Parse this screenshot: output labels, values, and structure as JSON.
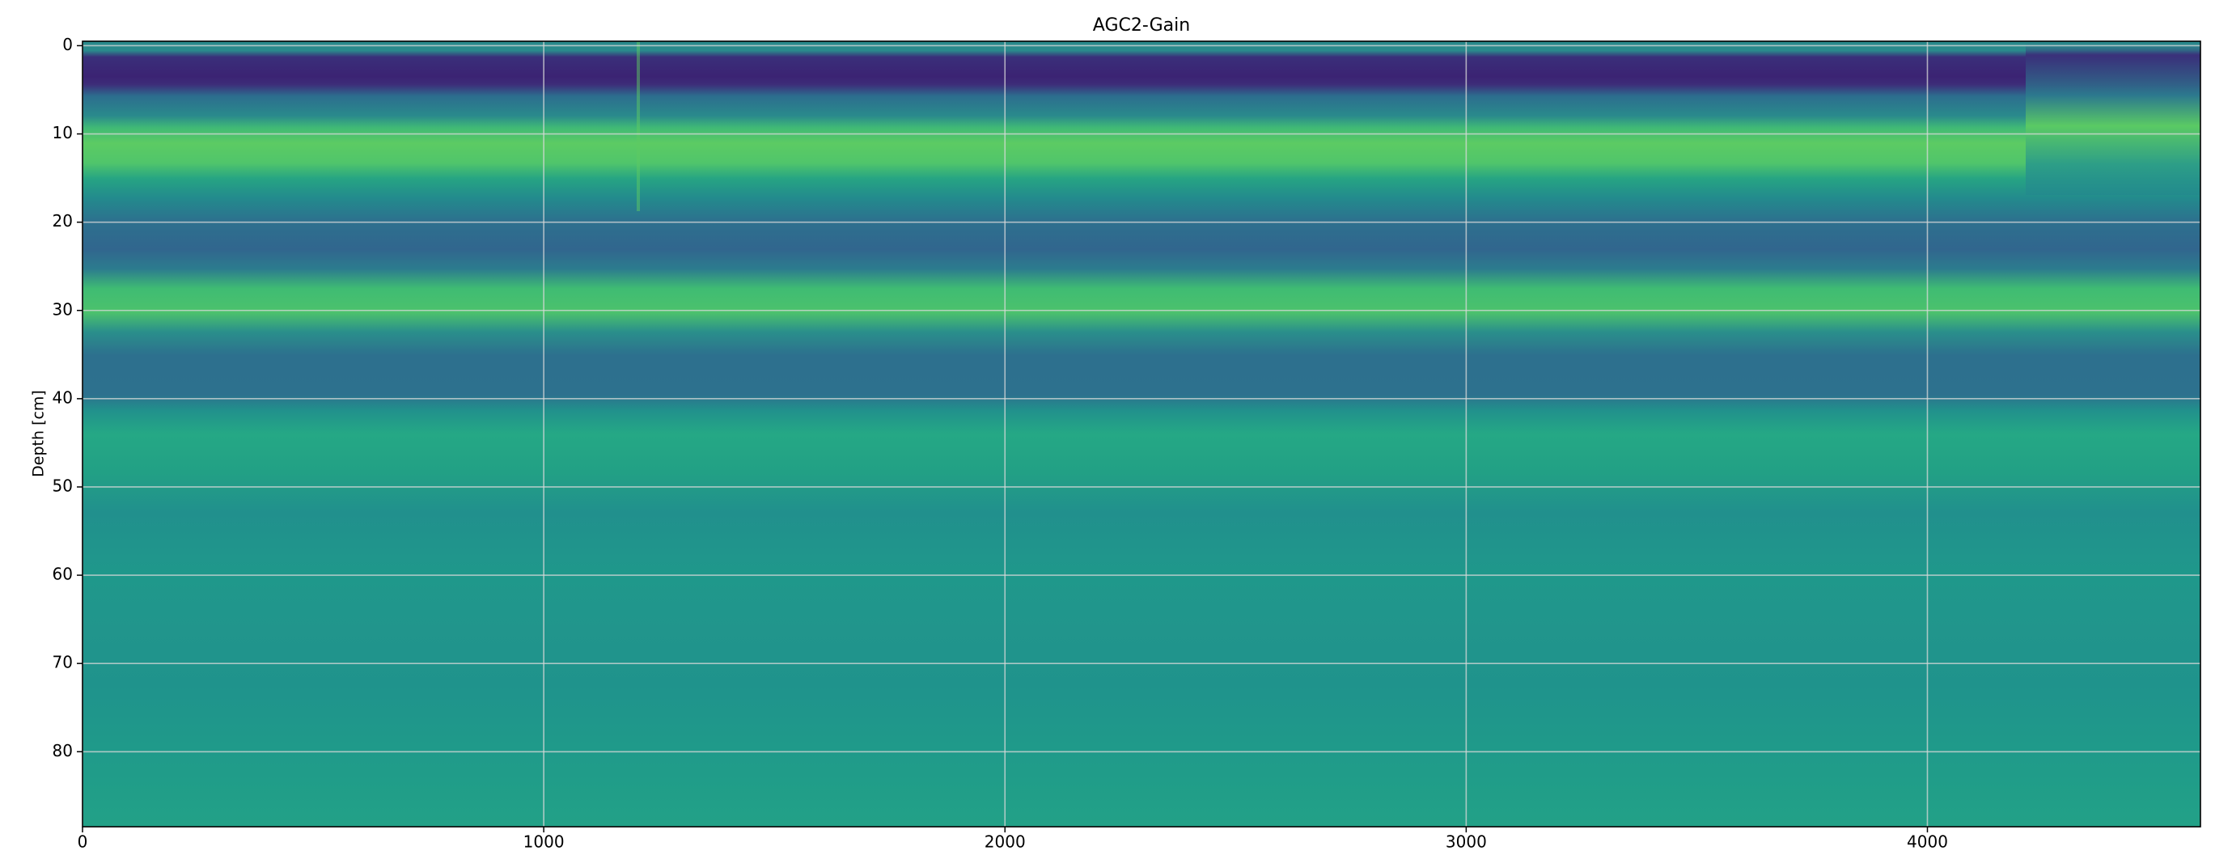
{
  "chart_data": {
    "type": "heatmap",
    "title": "AGC2-Gain",
    "ylabel": "Depth [cm]",
    "xlim": [
      0,
      4592
    ],
    "xticks": [
      0,
      1000,
      2000,
      3000,
      4000
    ],
    "ylim": [
      88.5,
      -0.5
    ],
    "yticks": [
      0,
      10,
      20,
      30,
      40,
      50,
      60,
      70,
      80
    ],
    "grid": true,
    "colormap": "viridis"
  }
}
